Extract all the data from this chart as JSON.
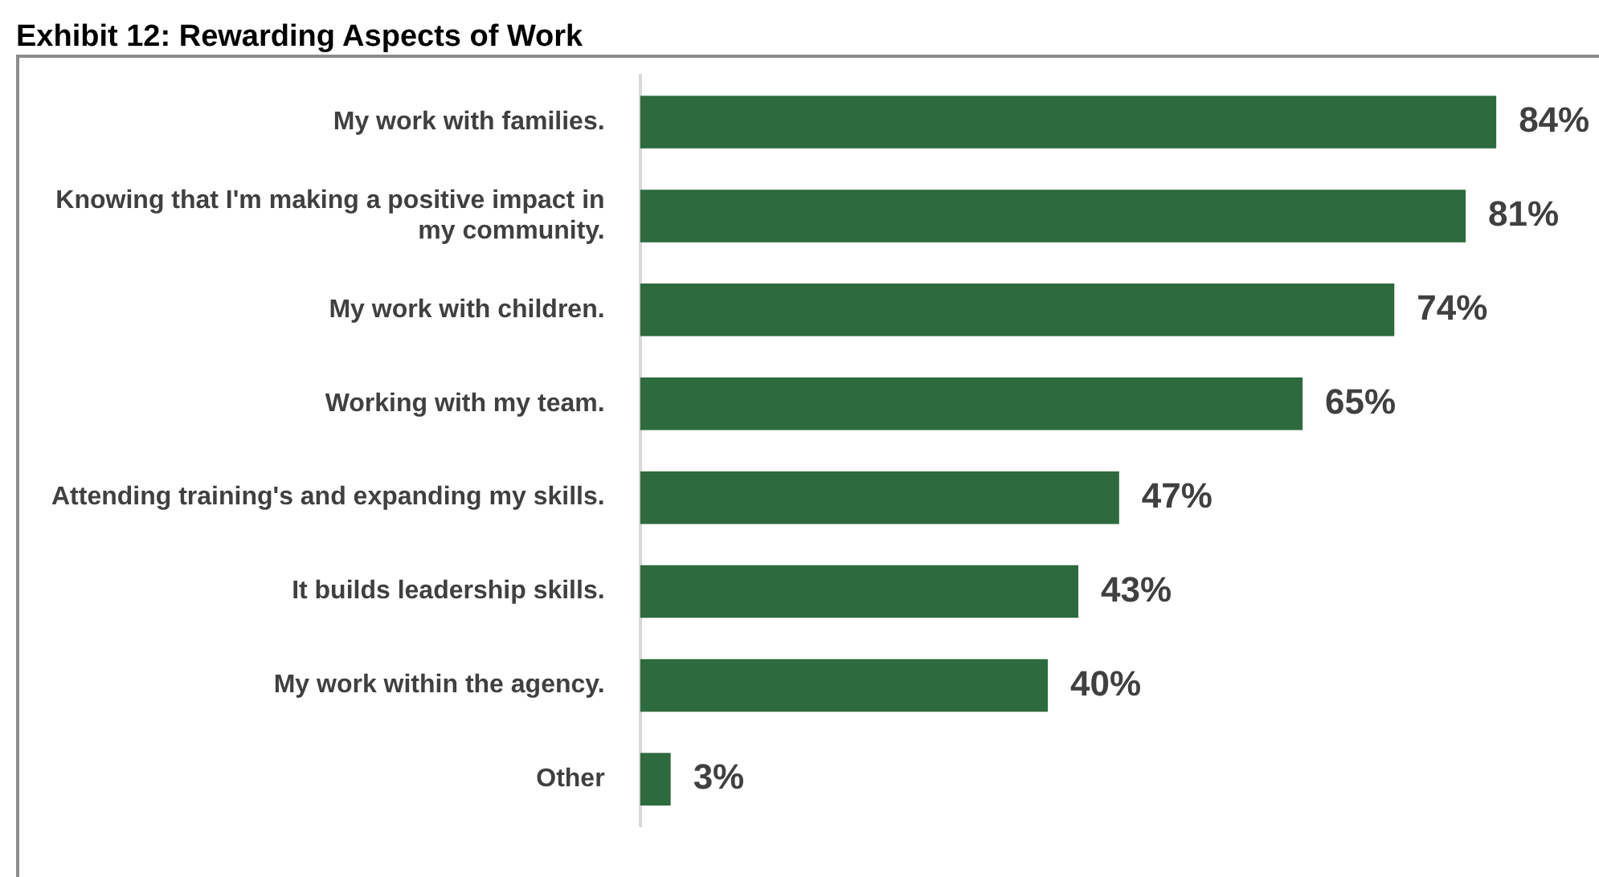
{
  "chart_data": {
    "type": "bar",
    "orientation": "horizontal",
    "title": "Exhibit 12: Rewarding Aspects of Work",
    "categories": [
      "My work with families.",
      "Knowing that I'm making a positive impact in my community.",
      "My work with children.",
      "Working with my team.",
      "Attending training's and expanding my skills.",
      "It builds leadership skills.",
      "My work within the agency.",
      "Other"
    ],
    "values": [
      84,
      81,
      74,
      65,
      47,
      43,
      40,
      3
    ],
    "value_labels": [
      "84%",
      "81%",
      "74%",
      "65%",
      "47%",
      "43%",
      "40%",
      "3%"
    ],
    "color": "#2d6a3e",
    "legend": false
  }
}
